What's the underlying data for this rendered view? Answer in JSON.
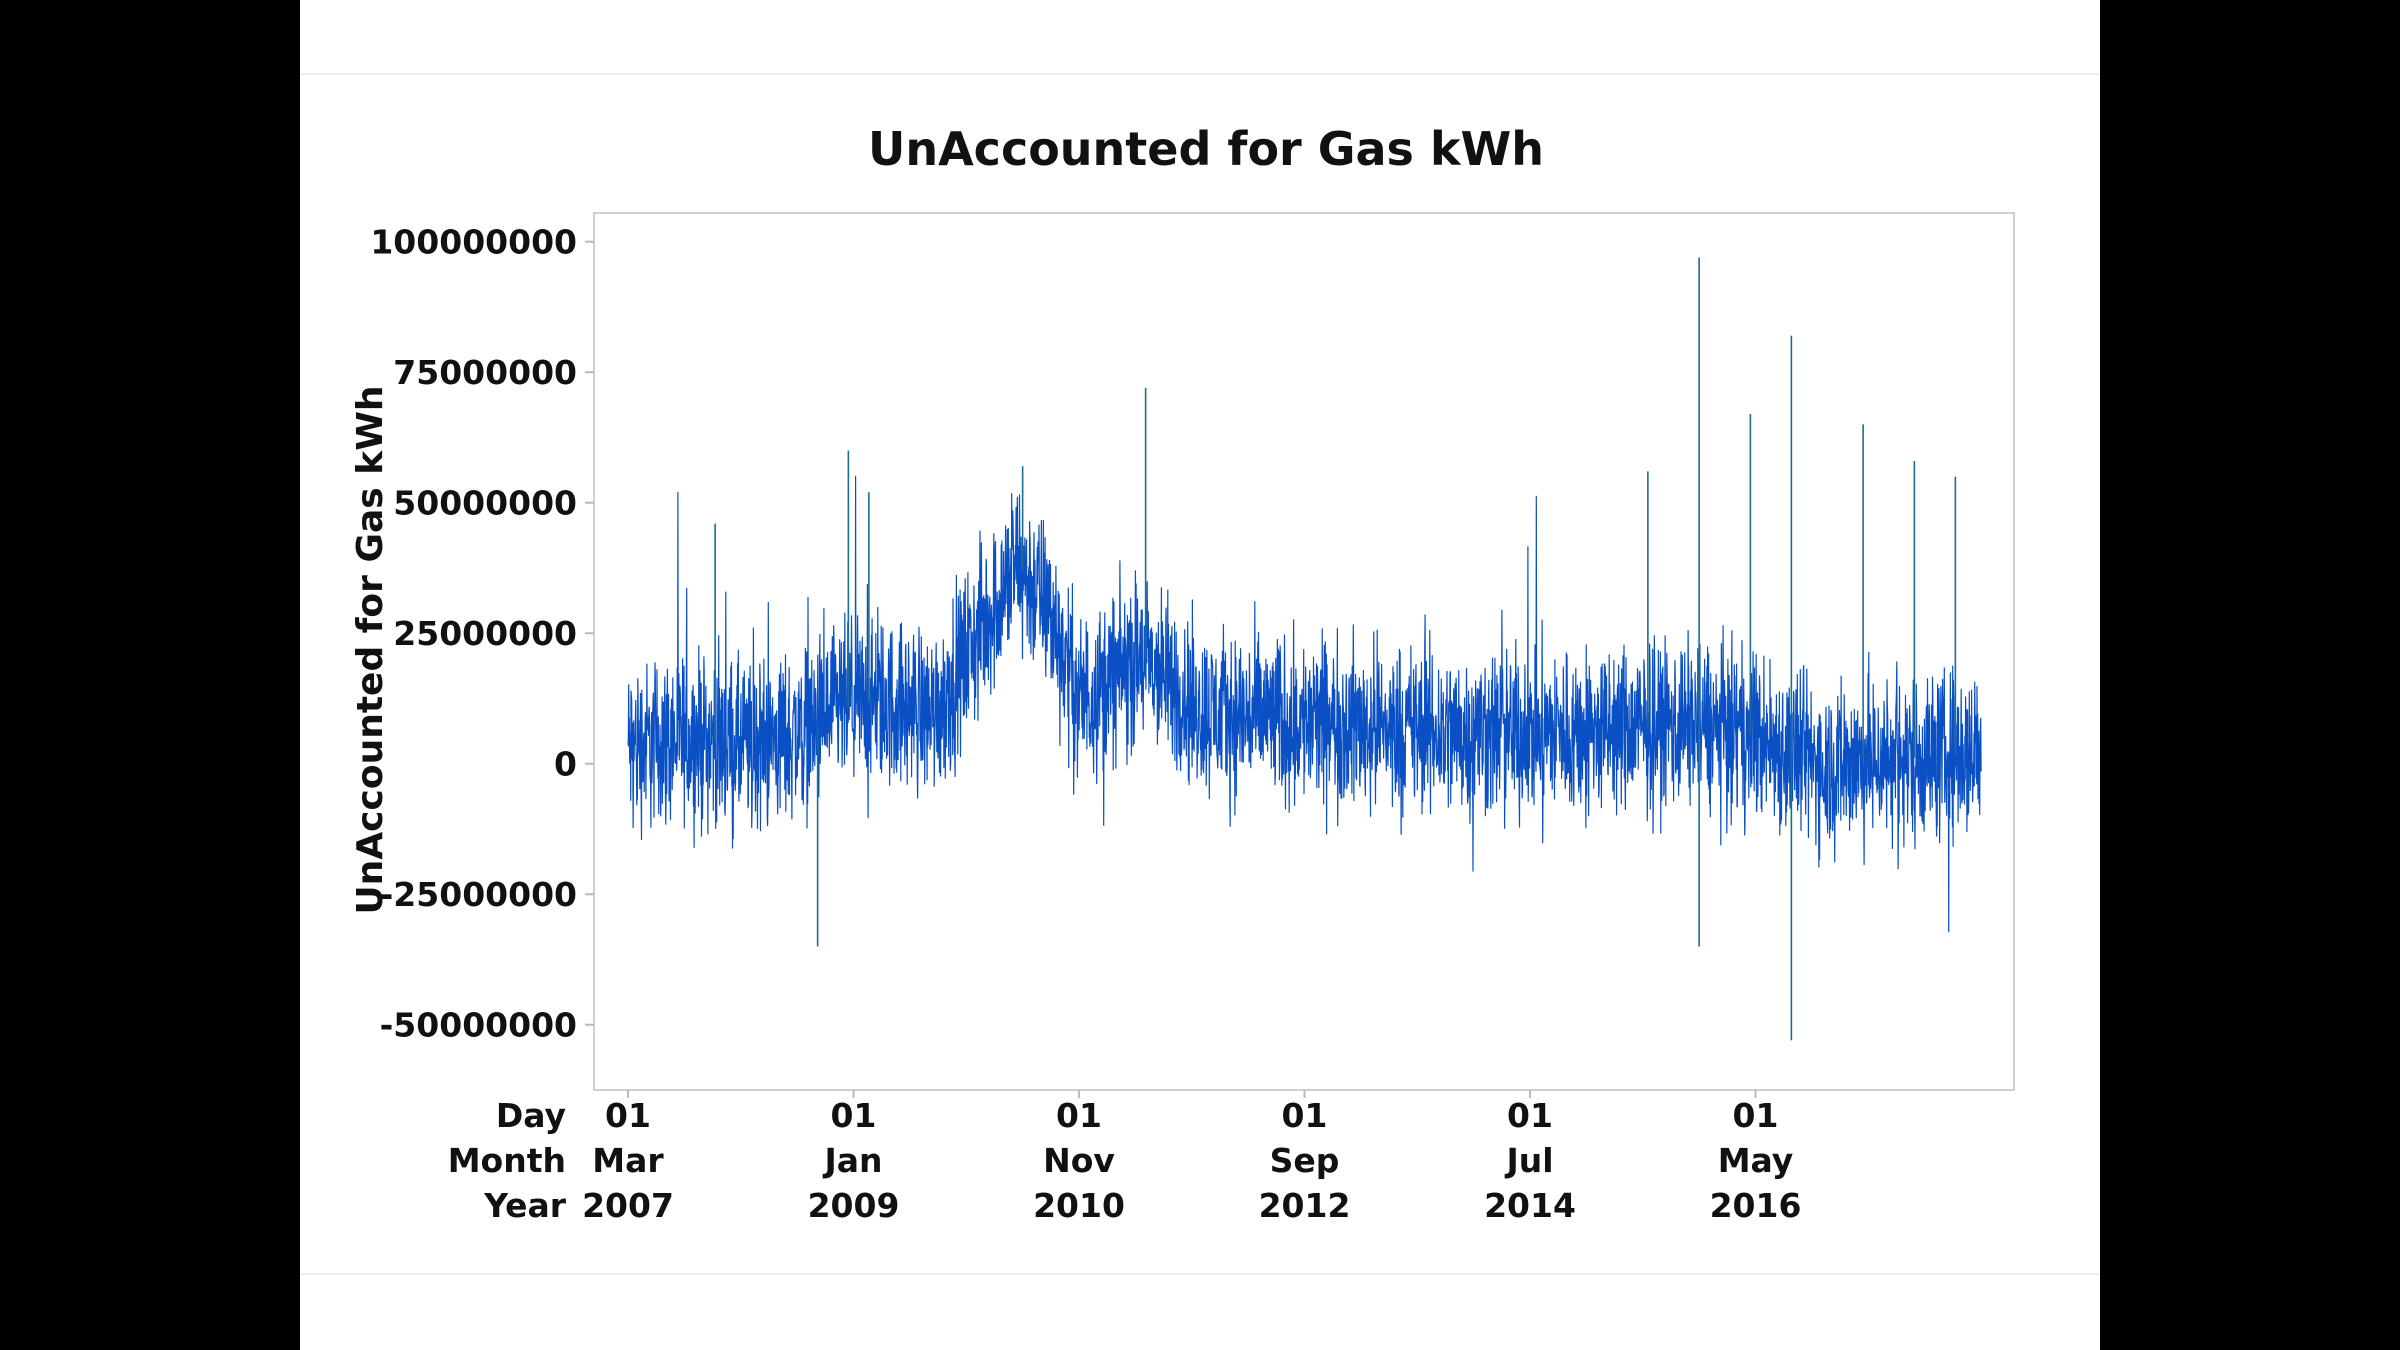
{
  "chart_data": {
    "type": "line",
    "title": "UnAccounted for Gas kWh",
    "ylabel": "UnAccounted for Gas kWh",
    "xlabel": "",
    "ylim": [
      -62500000,
      105500000
    ],
    "y_ticks": [
      100000000,
      75000000,
      50000000,
      25000000,
      0,
      -25000000,
      -50000000
    ],
    "y_tick_labels": [
      "100000000",
      "75000000",
      "50000000",
      "25000000",
      "0",
      "-25000000",
      "-50000000"
    ],
    "x_range": [
      "2007-03-01",
      "2018-03-01"
    ],
    "x_axis_row_labels": [
      "Day",
      "Month",
      "Year"
    ],
    "x_ticks": [
      {
        "date": "2007-03-01",
        "day": "01",
        "month": "Mar",
        "year": "2007"
      },
      {
        "date": "2009-01-01",
        "day": "01",
        "month": "Jan",
        "year": "2009"
      },
      {
        "date": "2010-11-01",
        "day": "01",
        "month": "Nov",
        "year": "2010"
      },
      {
        "date": "2012-09-01",
        "day": "01",
        "month": "Sep",
        "year": "2012"
      },
      {
        "date": "2014-07-01",
        "day": "01",
        "month": "Jul",
        "year": "2014"
      },
      {
        "date": "2016-05-01",
        "day": "01",
        "month": "May",
        "year": "2016"
      }
    ],
    "series": [
      {
        "name": "UnAccounted for Gas kWh",
        "frequency": "daily",
        "color": "#0a4fc4",
        "trend_level": [
          {
            "date": "2007-03",
            "value": 3000000
          },
          {
            "date": "2007-09",
            "value": 5000000
          },
          {
            "date": "2008-03",
            "value": 3000000
          },
          {
            "date": "2008-09",
            "value": 7000000
          },
          {
            "date": "2009-01",
            "value": 12000000
          },
          {
            "date": "2009-09",
            "value": 10000000
          },
          {
            "date": "2010-01",
            "value": 24000000
          },
          {
            "date": "2010-05",
            "value": 38000000
          },
          {
            "date": "2010-08",
            "value": 30000000
          },
          {
            "date": "2010-11",
            "value": 12000000
          },
          {
            "date": "2011-05",
            "value": 20000000
          },
          {
            "date": "2011-11",
            "value": 10000000
          },
          {
            "date": "2012-09",
            "value": 8000000
          },
          {
            "date": "2013-11",
            "value": 6000000
          },
          {
            "date": "2015-03",
            "value": 6000000
          },
          {
            "date": "2015-11",
            "value": 8000000
          },
          {
            "date": "2016-05",
            "value": 5000000
          },
          {
            "date": "2016-11",
            "value": 0
          },
          {
            "date": "2018-03",
            "value": 2000000
          }
        ],
        "typical_daily_spread": 12000000,
        "notable_points": [
          {
            "date": "2007-11",
            "value": 46000000
          },
          {
            "date": "2008-09",
            "value": -35000000
          },
          {
            "date": "2008-12",
            "value": 60000000
          },
          {
            "date": "2009-02",
            "value": 52000000
          },
          {
            "date": "2010-05",
            "value": 57000000
          },
          {
            "date": "2011-05",
            "value": 72000000
          },
          {
            "date": "2015-06",
            "value": 56000000
          },
          {
            "date": "2015-11",
            "value": 97000000
          },
          {
            "date": "2015-11",
            "value": -35000000
          },
          {
            "date": "2016-04",
            "value": 67000000
          },
          {
            "date": "2016-08",
            "value": 82000000
          },
          {
            "date": "2016-08",
            "value": -53000000
          },
          {
            "date": "2017-03",
            "value": 65000000
          },
          {
            "date": "2017-08",
            "value": 58000000
          },
          {
            "date": "2017-12",
            "value": 55000000
          }
        ]
      }
    ]
  }
}
